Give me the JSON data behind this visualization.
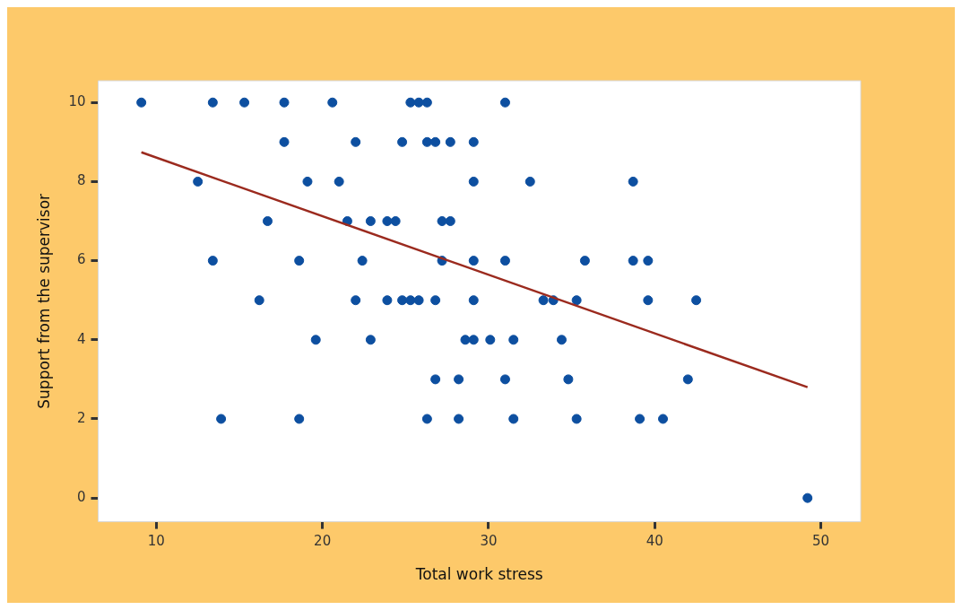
{
  "chart_data": {
    "type": "scatter",
    "xlabel": "Total work stress",
    "ylabel": "Support from the supervisor",
    "xlim": [
      6.5,
      52.4
    ],
    "xticks": [
      10,
      20,
      30,
      40,
      50
    ],
    "ylim": [
      -0.6,
      10.55
    ],
    "yticks": [
      0,
      2,
      4,
      6,
      8,
      10
    ],
    "grid": false,
    "series": [
      {
        "color": "#0d4fa0",
        "marker": "circle",
        "x": [
          9.1,
          13.4,
          15.3,
          17.7,
          20.6,
          25.3,
          25.8,
          26.3,
          31.0,
          17.7,
          22.0,
          24.8,
          26.3,
          26.8,
          27.7,
          29.1,
          12.5,
          19.1,
          21.0,
          29.1,
          32.5,
          38.7,
          16.7,
          21.5,
          22.9,
          23.9,
          24.4,
          27.2,
          27.7,
          13.4,
          18.6,
          22.4,
          27.2,
          29.1,
          31.0,
          35.8,
          38.7,
          39.6,
          16.2,
          22.0,
          23.9,
          24.8,
          25.3,
          25.8,
          26.8,
          29.1,
          33.3,
          33.9,
          35.3,
          39.6,
          42.5,
          19.6,
          22.9,
          28.6,
          29.1,
          30.1,
          31.5,
          34.4,
          26.8,
          28.2,
          31.0,
          34.8,
          42.0,
          13.9,
          18.6,
          26.3,
          28.2,
          31.5,
          35.3,
          39.1,
          40.5,
          49.2
        ],
        "values": [
          10,
          10,
          10,
          10,
          10,
          10,
          10,
          10,
          10,
          9,
          9,
          9,
          9,
          9,
          9,
          9,
          8,
          8,
          8,
          8,
          8,
          8,
          7,
          7,
          7,
          7,
          7,
          7,
          7,
          6,
          6,
          6,
          6,
          6,
          6,
          6,
          6,
          6,
          5,
          5,
          5,
          5,
          5,
          5,
          5,
          5,
          5,
          5,
          5,
          5,
          5,
          4,
          4,
          4,
          4,
          4,
          4,
          4,
          3,
          3,
          3,
          3,
          3,
          2,
          2,
          2,
          2,
          2,
          2,
          2,
          2,
          0
        ]
      },
      {
        "type": "line",
        "color": "#9b2a1e",
        "line_style": "solid",
        "x": [
          9.1,
          49.2
        ],
        "values": [
          8.74,
          2.8
        ]
      }
    ]
  }
}
